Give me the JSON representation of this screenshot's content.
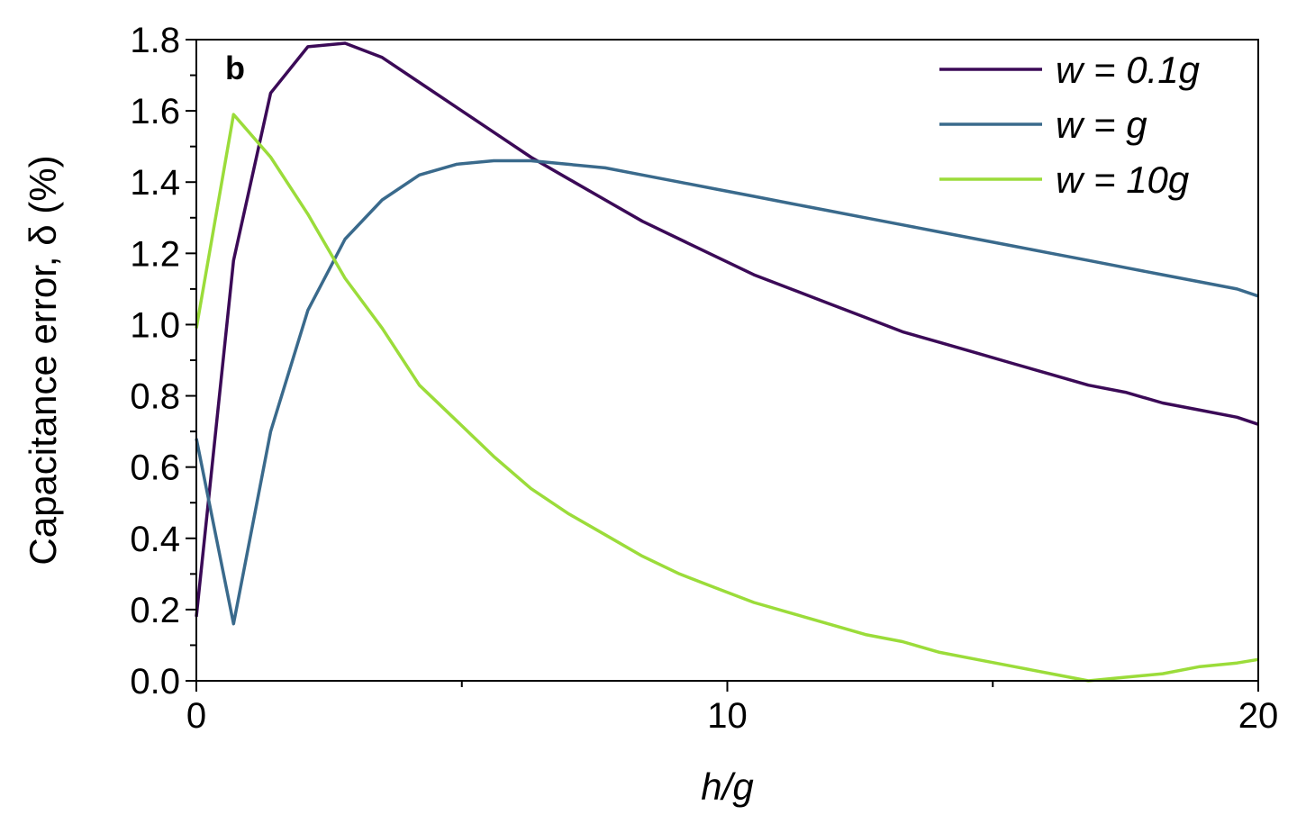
{
  "chart_data": {
    "type": "line",
    "panel_label": "b",
    "xlabel": "h/g",
    "ylabel": "Capacitance error, δ (%)",
    "xlim": [
      0,
      20
    ],
    "ylim": [
      0,
      1.8
    ],
    "xticks": [
      0,
      10,
      20
    ],
    "yticks": [
      0.0,
      0.2,
      0.4,
      0.6,
      0.8,
      1.0,
      1.2,
      1.4,
      1.6,
      1.8
    ],
    "ytick_labels": [
      "0.0",
      "0.2",
      "0.4",
      "0.6",
      "0.8",
      "1.0",
      "1.2",
      "1.4",
      "1.6",
      "1.8"
    ],
    "grid": false,
    "legend_position": "top-right",
    "series": [
      {
        "name": "w = 0.1g",
        "color": "#3b0a57",
        "x": [
          0,
          0.7,
          1.4,
          2.1,
          2.8,
          3.5,
          4.2,
          4.9,
          5.6,
          6.3,
          7.0,
          7.7,
          8.4,
          9.1,
          9.8,
          10.5,
          11.2,
          11.9,
          12.6,
          13.3,
          14.0,
          14.7,
          15.4,
          16.1,
          16.8,
          17.5,
          18.2,
          18.9,
          19.6,
          20.0
        ],
        "y": [
          0.18,
          1.18,
          1.65,
          1.78,
          1.79,
          1.75,
          1.68,
          1.61,
          1.54,
          1.47,
          1.41,
          1.35,
          1.29,
          1.24,
          1.19,
          1.14,
          1.1,
          1.06,
          1.02,
          0.98,
          0.95,
          0.92,
          0.89,
          0.86,
          0.83,
          0.81,
          0.78,
          0.76,
          0.74,
          0.72
        ]
      },
      {
        "name": "w = g",
        "color": "#3a6a8c",
        "x": [
          0,
          0.7,
          1.4,
          2.1,
          2.8,
          3.5,
          4.2,
          4.9,
          5.6,
          6.3,
          7.0,
          7.7,
          8.4,
          9.1,
          9.8,
          10.5,
          11.2,
          11.9,
          12.6,
          13.3,
          14.0,
          14.7,
          15.4,
          16.1,
          16.8,
          17.5,
          18.2,
          18.9,
          19.6,
          20.0
        ],
        "y": [
          0.68,
          0.16,
          0.7,
          1.04,
          1.24,
          1.35,
          1.42,
          1.45,
          1.46,
          1.46,
          1.45,
          1.44,
          1.42,
          1.4,
          1.38,
          1.36,
          1.34,
          1.32,
          1.3,
          1.28,
          1.26,
          1.24,
          1.22,
          1.2,
          1.18,
          1.16,
          1.14,
          1.12,
          1.1,
          1.08
        ]
      },
      {
        "name": "w = 10g",
        "color": "#9bdc3a",
        "x": [
          0,
          0.7,
          1.4,
          2.1,
          2.8,
          3.5,
          4.2,
          4.9,
          5.6,
          6.3,
          7.0,
          7.7,
          8.4,
          9.1,
          9.8,
          10.5,
          11.2,
          11.9,
          12.6,
          13.3,
          14.0,
          14.7,
          15.4,
          16.1,
          16.8,
          17.5,
          18.2,
          18.9,
          19.6,
          20.0
        ],
        "y": [
          0.99,
          1.59,
          1.47,
          1.31,
          1.13,
          0.99,
          0.83,
          0.73,
          0.63,
          0.54,
          0.47,
          0.41,
          0.35,
          0.3,
          0.26,
          0.22,
          0.19,
          0.16,
          0.13,
          0.11,
          0.08,
          0.06,
          0.04,
          0.02,
          0.0,
          0.01,
          0.02,
          0.04,
          0.05,
          0.06
        ]
      }
    ]
  }
}
